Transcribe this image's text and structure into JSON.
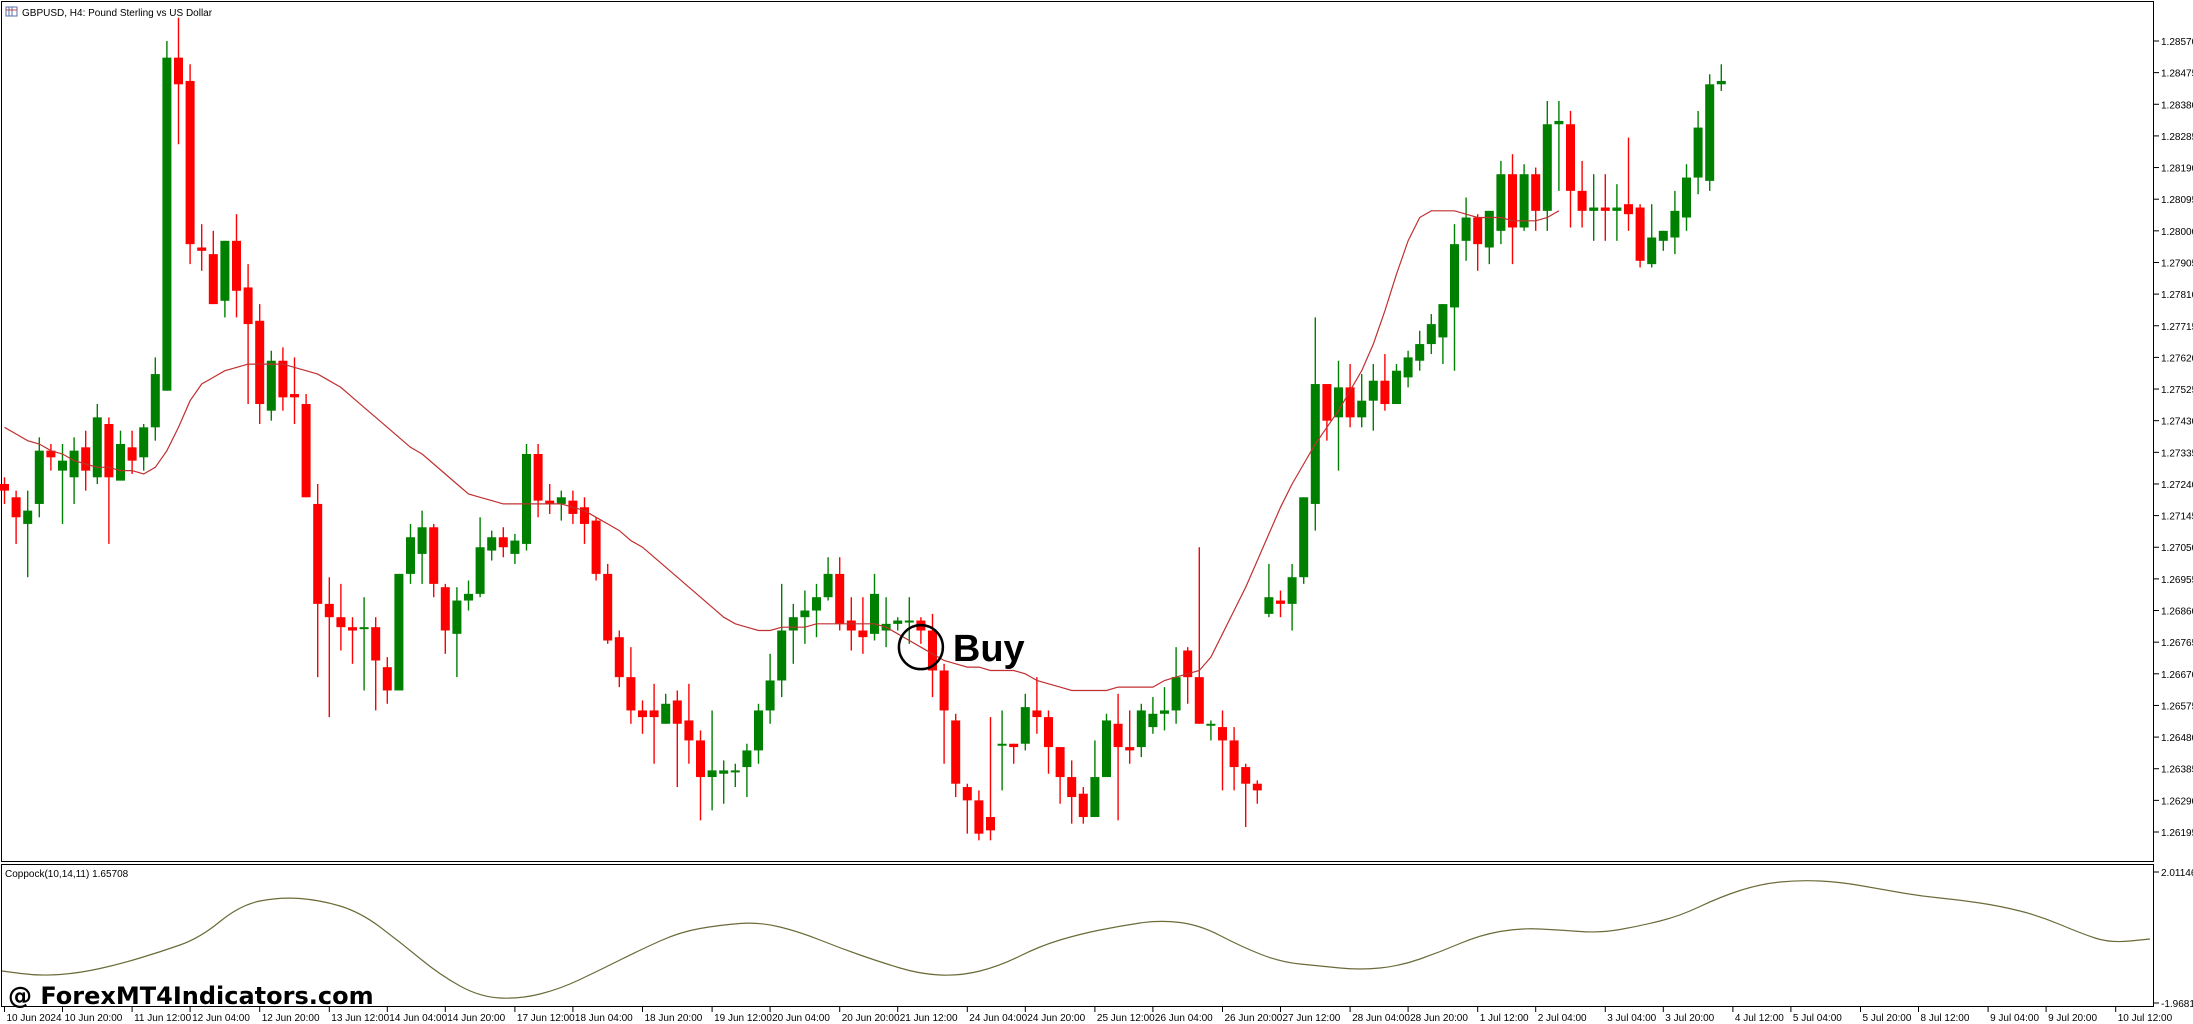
{
  "window": {
    "title": "GBPUSD, H4:  Pound Sterling vs US Dollar",
    "icon": "chart-window-icon"
  },
  "indicator": {
    "label": "Coppock(10,14,11) 1.65708",
    "scale_top": "2.01146",
    "scale_bottom": "-1.96818",
    "line_color": "#6b6b3a"
  },
  "signal": {
    "label": "Buy",
    "index": 79
  },
  "watermark": "@ ForexMT4Indicators.com",
  "colors": {
    "bull": "#008000",
    "bear": "#ff0000",
    "ma": "#c03030",
    "grid": "#000000"
  },
  "chart_data": {
    "type": "candlestick",
    "symbol": "GBPUSD",
    "timeframe": "H4",
    "ylim": [
      1.26147,
      1.28618
    ],
    "y_ticks": [
      "1.28570",
      "1.28475",
      "1.28380",
      "1.28285",
      "1.28190",
      "1.28095",
      "1.28000",
      "1.27905",
      "1.27810",
      "1.27715",
      "1.27620",
      "1.27525",
      "1.27430",
      "1.27335",
      "1.27240",
      "1.27145",
      "1.27050",
      "1.26955",
      "1.26860",
      "1.26765",
      "1.26670",
      "1.26575",
      "1.26480",
      "1.26385",
      "1.26290",
      "1.26195"
    ],
    "x_ticks": [
      {
        "i": 0,
        "label": "10 Jun 2024"
      },
      {
        "i": 5,
        "label": "10 Jun 20:00"
      },
      {
        "i": 11,
        "label": "11 Jun 12:00"
      },
      {
        "i": 16,
        "label": "12 Jun 04:00"
      },
      {
        "i": 22,
        "label": "12 Jun 20:00"
      },
      {
        "i": 28,
        "label": "13 Jun 12:00"
      },
      {
        "i": 33,
        "label": "14 Jun 04:00"
      },
      {
        "i": 38,
        "label": "14 Jun 20:00"
      },
      {
        "i": 44,
        "label": "17 Jun 12:00"
      },
      {
        "i": 49,
        "label": "18 Jun 04:00"
      },
      {
        "i": 55,
        "label": "18 Jun 20:00"
      },
      {
        "i": 61,
        "label": "19 Jun 12:00"
      },
      {
        "i": 66,
        "label": "20 Jun 04:00"
      },
      {
        "i": 72,
        "label": "20 Jun 20:00"
      },
      {
        "i": 77,
        "label": "21 Jun 12:00"
      },
      {
        "i": 83,
        "label": "24 Jun 04:00"
      },
      {
        "i": 88,
        "label": "24 Jun 20:00"
      },
      {
        "i": 94,
        "label": "25 Jun 12:00"
      },
      {
        "i": 99,
        "label": "26 Jun 04:00"
      },
      {
        "i": 105,
        "label": "26 Jun 20:00"
      },
      {
        "i": 110,
        "label": "27 Jun 12:00"
      },
      {
        "i": 116,
        "label": "28 Jun 04:00"
      },
      {
        "i": 121,
        "label": "28 Jun 20:00"
      },
      {
        "i": 127,
        "label": "1 Jul 12:00"
      },
      {
        "i": 132,
        "label": "2 Jul 04:00"
      },
      {
        "i": 138,
        "label": "3 Jul 04:00"
      },
      {
        "i": 143,
        "label": "3 Jul 20:00"
      },
      {
        "i": 149,
        "label": "4 Jul 12:00"
      },
      {
        "i": 154,
        "label": "5 Jul 04:00"
      },
      {
        "i": 160,
        "label": "5 Jul 20:00"
      },
      {
        "i": 165,
        "label": "8 Jul 12:00"
      },
      {
        "i": 171,
        "label": "9 Jul 04:00"
      },
      {
        "i": 176,
        "label": "9 Jul 20:00"
      },
      {
        "i": 182,
        "label": "10 Jul 12:00"
      }
    ],
    "candles": [
      [
        1.2724,
        1.2722,
        1.2726,
        1.2718
      ],
      [
        1.272,
        1.2714,
        1.2722,
        1.2706
      ],
      [
        1.2712,
        1.2716,
        1.2722,
        1.2696
      ],
      [
        1.2718,
        1.2734,
        1.2738,
        1.2714
      ],
      [
        1.2734,
        1.2732,
        1.2736,
        1.2728
      ],
      [
        1.2728,
        1.2731,
        1.2736,
        1.2712
      ],
      [
        1.2726,
        1.2734,
        1.2738,
        1.2718
      ],
      [
        1.2735,
        1.2728,
        1.274,
        1.2722
      ],
      [
        1.2726,
        1.2744,
        1.2748,
        1.2724
      ],
      [
        1.2742,
        1.2726,
        1.2744,
        1.2706
      ],
      [
        1.2725,
        1.2736,
        1.274,
        1.2727
      ],
      [
        1.2735,
        1.2731,
        1.274,
        1.2727
      ],
      [
        1.2732,
        1.2741,
        1.2742,
        1.2728
      ],
      [
        1.2741,
        1.2757,
        1.2762,
        1.2737
      ],
      [
        1.2752,
        1.2852,
        1.2857,
        1.2752
      ],
      [
        1.2852,
        1.2844,
        1.2864,
        1.2826
      ],
      [
        1.2845,
        1.2796,
        1.285,
        1.279
      ],
      [
        1.2795,
        1.2794,
        1.2802,
        1.2788
      ],
      [
        1.2793,
        1.2778,
        1.28,
        1.2778
      ],
      [
        1.2779,
        1.2797,
        1.2797,
        1.2774
      ],
      [
        1.2797,
        1.2782,
        1.2805,
        1.2774
      ],
      [
        1.2783,
        1.2772,
        1.279,
        1.2748
      ],
      [
        1.2773,
        1.2748,
        1.2778,
        1.2742
      ],
      [
        1.2746,
        1.2761,
        1.2764,
        1.2743
      ],
      [
        1.2761,
        1.275,
        1.2765,
        1.2746
      ],
      [
        1.2751,
        1.275,
        1.2762,
        1.2742
      ],
      [
        1.2748,
        1.272,
        1.2751,
        1.272
      ],
      [
        1.2718,
        1.2688,
        1.2724,
        1.2666
      ],
      [
        1.2688,
        1.2684,
        1.2696,
        1.2654
      ],
      [
        1.2684,
        1.2681,
        1.2694,
        1.2674
      ],
      [
        1.2681,
        1.268,
        1.2684,
        1.267
      ],
      [
        1.2681,
        1.2681,
        1.269,
        1.2662
      ],
      [
        1.2681,
        1.2671,
        1.2684,
        1.2656
      ],
      [
        1.2669,
        1.2662,
        1.2672,
        1.2658
      ],
      [
        1.2662,
        1.2697,
        1.2697,
        1.2662
      ],
      [
        1.2697,
        1.2708,
        1.2712,
        1.2694
      ],
      [
        1.2703,
        1.2711,
        1.2716,
        1.2694
      ],
      [
        1.2711,
        1.2694,
        1.2712,
        1.269
      ],
      [
        1.2693,
        1.268,
        1.2694,
        1.2673
      ],
      [
        1.2679,
        1.2689,
        1.2693,
        1.2666
      ],
      [
        1.2689,
        1.2691,
        1.2695,
        1.2686
      ],
      [
        1.2691,
        1.2705,
        1.2714,
        1.269
      ],
      [
        1.2704,
        1.2708,
        1.271,
        1.2701
      ],
      [
        1.2708,
        1.2705,
        1.2711,
        1.2702
      ],
      [
        1.2703,
        1.2707,
        1.2709,
        1.27
      ],
      [
        1.2706,
        1.2733,
        1.2736,
        1.2704
      ],
      [
        1.2733,
        1.2719,
        1.2736,
        1.2714
      ],
      [
        1.2719,
        1.2718,
        1.2724,
        1.2715
      ],
      [
        1.2718,
        1.272,
        1.2722,
        1.2713
      ],
      [
        1.2719,
        1.2715,
        1.2722,
        1.2712
      ],
      [
        1.2717,
        1.2712,
        1.272,
        1.2706
      ],
      [
        1.2713,
        1.2697,
        1.2714,
        1.2695
      ],
      [
        1.2697,
        1.2677,
        1.27,
        1.2676
      ],
      [
        1.2678,
        1.2666,
        1.268,
        1.2663
      ],
      [
        1.2666,
        1.2656,
        1.2675,
        1.2652
      ],
      [
        1.2656,
        1.2654,
        1.2659,
        1.2649
      ],
      [
        1.2656,
        1.2654,
        1.2664,
        1.264
      ],
      [
        1.2652,
        1.2658,
        1.2661,
        1.2652
      ],
      [
        1.2659,
        1.2652,
        1.2662,
        1.2633
      ],
      [
        1.2653,
        1.2647,
        1.2664,
        1.264
      ],
      [
        1.2647,
        1.2636,
        1.265,
        1.2623
      ],
      [
        1.2636,
        1.2638,
        1.2656,
        1.2626
      ],
      [
        1.2637,
        1.2638,
        1.2641,
        1.2628
      ],
      [
        1.2638,
        1.2638,
        1.264,
        1.2633
      ],
      [
        1.2639,
        1.2644,
        1.2646,
        1.263
      ],
      [
        1.2644,
        1.2656,
        1.2658,
        1.264
      ],
      [
        1.2656,
        1.2665,
        1.2673,
        1.2652
      ],
      [
        1.2665,
        1.268,
        1.2694,
        1.266
      ],
      [
        1.268,
        1.2684,
        1.2688,
        1.267
      ],
      [
        1.2684,
        1.2686,
        1.2692,
        1.2676
      ],
      [
        1.2686,
        1.269,
        1.2694,
        1.2678
      ],
      [
        1.269,
        1.2697,
        1.2702,
        1.2689
      ],
      [
        1.2697,
        1.2682,
        1.2702,
        1.268
      ],
      [
        1.2683,
        1.268,
        1.269,
        1.2674
      ],
      [
        1.268,
        1.2678,
        1.269,
        1.2673
      ],
      [
        1.2679,
        1.2691,
        1.2697,
        1.2677
      ],
      [
        1.268,
        1.2682,
        1.269,
        1.2675
      ],
      [
        1.2682,
        1.2683,
        1.2684,
        1.268
      ],
      [
        1.2683,
        1.2683,
        1.269,
        1.2676
      ],
      [
        1.2683,
        1.268,
        1.2684,
        1.2676
      ],
      [
        1.268,
        1.2668,
        1.2685,
        1.266
      ],
      [
        1.2668,
        1.2656,
        1.267,
        1.264
      ],
      [
        1.2653,
        1.2634,
        1.2655,
        1.263
      ],
      [
        1.2633,
        1.2629,
        1.2634,
        1.2619
      ],
      [
        1.2629,
        1.2619,
        1.2632,
        1.2617
      ],
      [
        1.2624,
        1.262,
        1.2654,
        1.2617
      ],
      [
        1.2646,
        1.2646,
        1.2656,
        1.2632
      ],
      [
        1.2646,
        1.2645,
        1.2646,
        1.264
      ],
      [
        1.2646,
        1.2657,
        1.2661,
        1.2644
      ],
      [
        1.2656,
        1.2654,
        1.2666,
        1.2649
      ],
      [
        1.2654,
        1.2645,
        1.2656,
        1.2637
      ],
      [
        1.2645,
        1.2636,
        1.2645,
        1.2628
      ],
      [
        1.2636,
        1.263,
        1.2641,
        1.2622
      ],
      [
        1.2631,
        1.2624,
        1.2633,
        1.2622
      ],
      [
        1.2624,
        1.2636,
        1.2647,
        1.2624
      ],
      [
        1.2636,
        1.2653,
        1.2655,
        1.2643
      ],
      [
        1.2652,
        1.2645,
        1.2661,
        1.2623
      ],
      [
        1.2645,
        1.2644,
        1.2656,
        1.264
      ],
      [
        1.2645,
        1.2656,
        1.2658,
        1.2642
      ],
      [
        1.2651,
        1.2655,
        1.266,
        1.2649
      ],
      [
        1.2655,
        1.2656,
        1.2663,
        1.265
      ],
      [
        1.2656,
        1.2666,
        1.2675,
        1.2652
      ],
      [
        1.2674,
        1.2666,
        1.2675,
        1.2658
      ],
      [
        1.2666,
        1.2652,
        1.2705,
        1.2652
      ],
      [
        1.2652,
        1.2652,
        1.2653,
        1.2647
      ],
      [
        1.2651,
        1.2647,
        1.2656,
        1.2632
      ],
      [
        1.2647,
        1.2639,
        1.2651,
        1.2632
      ],
      [
        1.2639,
        1.2634,
        1.264,
        1.2621
      ],
      [
        1.2634,
        1.2632,
        1.2635,
        1.2628
      ],
      [
        1.2685,
        1.269,
        1.27,
        1.2684
      ],
      [
        1.2689,
        1.2688,
        1.2692,
        1.2684
      ],
      [
        1.2688,
        1.2696,
        1.27,
        1.268
      ],
      [
        1.2696,
        1.272,
        1.272,
        1.2694
      ],
      [
        1.2718,
        1.2754,
        1.2774,
        1.271
      ],
      [
        1.2754,
        1.2743,
        1.2753,
        1.2737
      ],
      [
        1.2744,
        1.2753,
        1.2761,
        1.2728
      ],
      [
        1.2753,
        1.2744,
        1.276,
        1.2741
      ],
      [
        1.2744,
        1.2749,
        1.2757,
        1.2741
      ],
      [
        1.2749,
        1.2755,
        1.276,
        1.274
      ],
      [
        1.2755,
        1.2748,
        1.2763,
        1.2746
      ],
      [
        1.2748,
        1.2758,
        1.276,
        1.2748
      ],
      [
        1.2756,
        1.2762,
        1.2764,
        1.2753
      ],
      [
        1.2761,
        1.2766,
        1.277,
        1.2758
      ],
      [
        1.2766,
        1.2772,
        1.2775,
        1.2763
      ],
      [
        1.2768,
        1.2778,
        1.2778,
        1.276
      ],
      [
        1.2777,
        1.2796,
        1.2802,
        1.2758
      ],
      [
        1.2797,
        1.2804,
        1.281,
        1.2791
      ],
      [
        1.2804,
        1.2796,
        1.2805,
        1.2788
      ],
      [
        1.2795,
        1.2806,
        1.2806,
        1.279
      ],
      [
        1.28,
        1.2817,
        1.2821,
        1.2796
      ],
      [
        1.2817,
        1.2801,
        1.2823,
        1.279
      ],
      [
        1.2801,
        1.2817,
        1.282,
        1.28
      ],
      [
        1.2817,
        1.2806,
        1.2819,
        1.28
      ],
      [
        1.2806,
        1.2832,
        1.2839,
        1.28
      ],
      [
        1.2832,
        1.2833,
        1.2839,
        1.2812
      ],
      [
        1.2832,
        1.2812,
        1.2836,
        1.2801
      ],
      [
        1.2812,
        1.2806,
        1.2821,
        1.2801
      ],
      [
        1.2806,
        1.2807,
        1.2817,
        1.2797
      ],
      [
        1.2807,
        1.2806,
        1.2817,
        1.2797
      ],
      [
        1.2806,
        1.2807,
        1.2814,
        1.2797
      ],
      [
        1.2808,
        1.2805,
        1.2828,
        1.28
      ],
      [
        1.2807,
        1.2791,
        1.2808,
        1.2789
      ],
      [
        1.279,
        1.2798,
        1.2808,
        1.2789
      ],
      [
        1.2797,
        1.28,
        1.28,
        1.2794
      ],
      [
        1.2798,
        1.2806,
        1.2812,
        1.2793
      ],
      [
        1.2804,
        1.2816,
        1.282,
        1.28
      ],
      [
        1.2816,
        1.2831,
        1.2836,
        1.2811
      ],
      [
        1.2815,
        1.2844,
        1.2847,
        1.2812
      ],
      [
        1.2844,
        1.2845,
        1.285,
        1.2842
      ]
    ],
    "ma": [
      1.2741,
      1.2739,
      1.2737,
      1.2736,
      1.2734,
      1.2733,
      1.2731,
      1.273,
      1.2729,
      1.2729,
      1.2728,
      1.2728,
      1.2727,
      1.2729,
      1.2734,
      1.2741,
      1.2749,
      1.2754,
      1.2756,
      1.2758,
      1.2759,
      1.276,
      1.276,
      1.276,
      1.276,
      1.2759,
      1.2758,
      1.2757,
      1.2755,
      1.2753,
      1.275,
      1.2747,
      1.2744,
      1.2741,
      1.2738,
      1.2735,
      1.2733,
      1.273,
      1.2727,
      1.2724,
      1.2721,
      1.272,
      1.2719,
      1.2718,
      1.2718,
      1.2718,
      1.2718,
      1.2718,
      1.2718,
      1.2717,
      1.2716,
      1.2714,
      1.2712,
      1.271,
      1.2707,
      1.2705,
      1.2702,
      1.2699,
      1.2696,
      1.2693,
      1.269,
      1.2687,
      1.2684,
      1.2682,
      1.2681,
      1.268,
      1.268,
      1.2681,
      1.2681,
      1.2681,
      1.2682,
      1.2682,
      1.2682,
      1.2682,
      1.2682,
      1.2682,
      1.2681,
      1.2679,
      1.2677,
      1.2675,
      1.2673,
      1.2671,
      1.267,
      1.2669,
      1.2669,
      1.2668,
      1.2668,
      1.2668,
      1.2667,
      1.2665,
      1.2664,
      1.2663,
      1.2662,
      1.2662,
      1.2662,
      1.2662,
      1.2663,
      1.2663,
      1.2663,
      1.2663,
      1.2665,
      1.2666,
      1.2667,
      1.2668,
      1.2672,
      1.2679,
      1.2686,
      1.2693,
      1.2701,
      1.2709,
      1.2717,
      1.2724,
      1.273,
      1.2736,
      1.2741,
      1.2746,
      1.2752,
      1.2758,
      1.2766,
      1.2776,
      1.2787,
      1.2797,
      1.2804,
      1.2806,
      1.2806,
      1.2806,
      1.2805,
      1.2804,
      1.2804,
      1.2804,
      1.2803,
      1.2803,
      1.2803,
      1.2804,
      1.2806
    ]
  }
}
